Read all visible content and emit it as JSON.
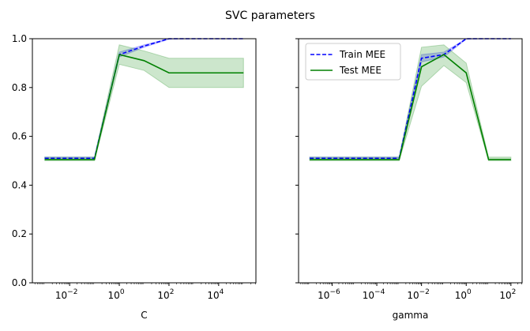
{
  "figure": {
    "title": "SVC parameters"
  },
  "chart_data": [
    {
      "type": "line",
      "xscale": "log",
      "xlabel": "C",
      "ylabel": "",
      "xlim_log10": [
        -3.5,
        5.5
      ],
      "ylim": [
        0,
        1
      ],
      "yticks": [
        "0.0",
        "0.2",
        "0.4",
        "0.6",
        "0.8",
        "1.0"
      ],
      "xticks": [
        {
          "exp": -2,
          "label": "10",
          "sup": "−2"
        },
        {
          "exp": 0,
          "label": "10",
          "sup": "0"
        },
        {
          "exp": 2,
          "label": "10",
          "sup": "2"
        },
        {
          "exp": 4,
          "label": "10",
          "sup": "4"
        }
      ],
      "x": [
        0.001,
        0.01,
        0.1,
        1,
        10,
        100,
        1000,
        10000,
        100000
      ],
      "series": [
        {
          "key": "train",
          "style": "dashed",
          "color": "#0000ff",
          "values": [
            0.51,
            0.51,
            0.51,
            0.935,
            0.97,
            1.0,
            1.0,
            1.0,
            1.0
          ],
          "band_low": [
            0.505,
            0.505,
            0.505,
            0.925,
            0.965,
            0.998,
            1.0,
            1.0,
            1.0
          ],
          "band_high": [
            0.515,
            0.515,
            0.515,
            0.945,
            0.975,
            1.0,
            1.0,
            1.0,
            1.0
          ]
        },
        {
          "key": "test",
          "style": "solid",
          "color": "#008000",
          "values": [
            0.505,
            0.505,
            0.505,
            0.935,
            0.91,
            0.86,
            0.86,
            0.86,
            0.86
          ],
          "band_low": [
            0.5,
            0.5,
            0.5,
            0.895,
            0.87,
            0.8,
            0.8,
            0.8,
            0.8
          ],
          "band_high": [
            0.515,
            0.515,
            0.515,
            0.975,
            0.95,
            0.92,
            0.92,
            0.92,
            0.92
          ]
        }
      ],
      "legend": null
    },
    {
      "type": "line",
      "xscale": "log",
      "xlabel": "gamma",
      "ylabel": "",
      "xlim_log10": [
        -7.5,
        2.5
      ],
      "ylim": [
        0,
        1
      ],
      "yticks": [
        "",
        "",
        "",
        "",
        "",
        ""
      ],
      "xticks": [
        {
          "exp": -6,
          "label": "10",
          "sup": "−6"
        },
        {
          "exp": -4,
          "label": "10",
          "sup": "−4"
        },
        {
          "exp": -2,
          "label": "10",
          "sup": "−2"
        },
        {
          "exp": 0,
          "label": "10",
          "sup": "0"
        },
        {
          "exp": 2,
          "label": "10",
          "sup": "2"
        }
      ],
      "x": [
        1e-07,
        1e-06,
        1e-05,
        0.0001,
        0.001,
        0.01,
        0.1,
        1,
        10,
        100
      ],
      "series": [
        {
          "key": "train",
          "style": "dashed",
          "color": "#0000ff",
          "values": [
            0.51,
            0.51,
            0.51,
            0.51,
            0.51,
            0.92,
            0.935,
            1.0,
            1.0,
            1.0
          ],
          "band_low": [
            0.505,
            0.505,
            0.505,
            0.505,
            0.505,
            0.905,
            0.925,
            0.998,
            1.0,
            1.0
          ],
          "band_high": [
            0.515,
            0.515,
            0.515,
            0.515,
            0.515,
            0.935,
            0.945,
            1.0,
            1.0,
            1.0
          ]
        },
        {
          "key": "test",
          "style": "solid",
          "color": "#008000",
          "values": [
            0.505,
            0.505,
            0.505,
            0.505,
            0.505,
            0.885,
            0.935,
            0.86,
            0.505,
            0.505
          ],
          "band_low": [
            0.5,
            0.5,
            0.5,
            0.5,
            0.5,
            0.805,
            0.89,
            0.82,
            0.5,
            0.5
          ],
          "band_high": [
            0.515,
            0.515,
            0.515,
            0.515,
            0.515,
            0.965,
            0.975,
            0.9,
            0.515,
            0.515
          ]
        }
      ],
      "legend": {
        "placement": "top-left",
        "entries": [
          {
            "key": "train",
            "name": "Train MEE"
          },
          {
            "key": "test",
            "name": "Test MEE"
          }
        ]
      }
    }
  ]
}
